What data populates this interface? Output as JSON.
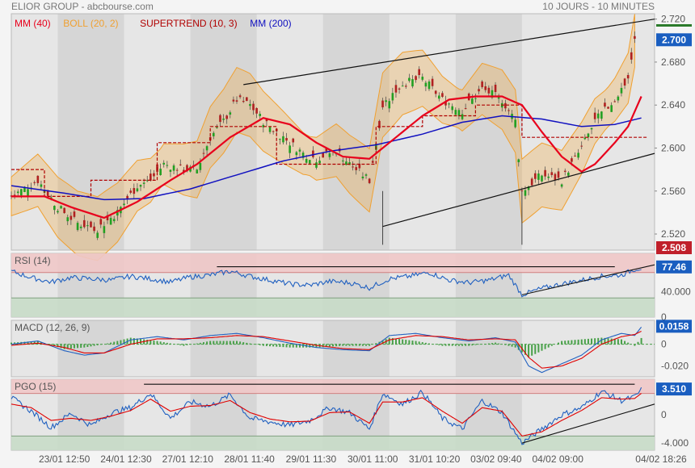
{
  "header": {
    "title": "ELIOR GROUP - abcbourse.com",
    "period": "10 JOURS - 10 MINUTES"
  },
  "colors": {
    "mm40": "#e8001c",
    "boll": "#f0a030",
    "supertrend": "#b00000",
    "mm200": "#1010c0",
    "candle_up": "#22a022",
    "candle_down": "#b02020",
    "rsi": "#2060c0",
    "signal": "#e00000",
    "panel_bg": "#e6e6e6",
    "stripe": "#d6d6d6",
    "overbought": "#f0c8c8",
    "oversold": "#c8dcc8",
    "badge": "#1a5ec0",
    "badge_red": "#c0202a",
    "badge_green": "#2a7a2a"
  },
  "x_dates": [
    "23/01 12:50",
    "24/01 12:30",
    "27/01 12:10",
    "28/01 11:40",
    "29/01 11:30",
    "30/01 11:00",
    "31/01 10:20",
    "03/02 09:40",
    "04/02 09:00",
    "04/02 18:26"
  ],
  "chart_data": [
    {
      "type": "candlestick",
      "legend": [
        {
          "label": "MM (40)",
          "color_key": "mm40"
        },
        {
          "label": "BOLL (20, 2)",
          "color_key": "boll"
        },
        {
          "label": "SUPERTREND (10, 3)",
          "color_key": "supertrend"
        },
        {
          "label": "MM (200)",
          "color_key": "mm200"
        }
      ],
      "y_ticks": [
        "2.720",
        "2.680",
        "2.640",
        "2.600",
        "2.560",
        "2.520"
      ],
      "ylim": [
        2.505,
        2.725
      ],
      "last_price": "2.700",
      "low_marker": "2.508",
      "close_path": [
        [
          0,
          2.555
        ],
        [
          4,
          2.57
        ],
        [
          7,
          2.545
        ],
        [
          10,
          2.53
        ],
        [
          13,
          2.525
        ],
        [
          16,
          2.54
        ],
        [
          19,
          2.565
        ],
        [
          21,
          2.57
        ],
        [
          23,
          2.585
        ],
        [
          26,
          2.58
        ],
        [
          28,
          2.58
        ],
        [
          30,
          2.61
        ],
        [
          32,
          2.625
        ],
        [
          34,
          2.645
        ],
        [
          36,
          2.64
        ],
        [
          38,
          2.625
        ],
        [
          40,
          2.615
        ],
        [
          42,
          2.605
        ],
        [
          44,
          2.595
        ],
        [
          46,
          2.59
        ],
        [
          49,
          2.598
        ],
        [
          51,
          2.585
        ],
        [
          54,
          2.57
        ],
        [
          56,
          2.64
        ],
        [
          59,
          2.66
        ],
        [
          62,
          2.665
        ],
        [
          65,
          2.645
        ],
        [
          68,
          2.635
        ],
        [
          71,
          2.655
        ],
        [
          74,
          2.645
        ],
        [
          76,
          2.625
        ],
        [
          77,
          2.56
        ],
        [
          80,
          2.575
        ],
        [
          83,
          2.57
        ],
        [
          86,
          2.6
        ],
        [
          88,
          2.625
        ],
        [
          91,
          2.645
        ],
        [
          93,
          2.665
        ],
        [
          94,
          2.7
        ]
      ],
      "mm40": [
        [
          0,
          2.555
        ],
        [
          5,
          2.555
        ],
        [
          9,
          2.545
        ],
        [
          14,
          2.535
        ],
        [
          19,
          2.55
        ],
        [
          24,
          2.57
        ],
        [
          28,
          2.585
        ],
        [
          33,
          2.61
        ],
        [
          38,
          2.628
        ],
        [
          42,
          2.622
        ],
        [
          46,
          2.605
        ],
        [
          50,
          2.592
        ],
        [
          54,
          2.59
        ],
        [
          58,
          2.61
        ],
        [
          62,
          2.63
        ],
        [
          66,
          2.645
        ],
        [
          70,
          2.648
        ],
        [
          74,
          2.648
        ],
        [
          77,
          2.64
        ],
        [
          80,
          2.615
        ],
        [
          83,
          2.592
        ],
        [
          86,
          2.578
        ],
        [
          88,
          2.585
        ],
        [
          91,
          2.605
        ],
        [
          93,
          2.62
        ],
        [
          95,
          2.648
        ]
      ],
      "mm200": [
        [
          0,
          2.565
        ],
        [
          8,
          2.558
        ],
        [
          14,
          2.552
        ],
        [
          20,
          2.553
        ],
        [
          27,
          2.562
        ],
        [
          34,
          2.575
        ],
        [
          41,
          2.588
        ],
        [
          48,
          2.597
        ],
        [
          55,
          2.603
        ],
        [
          62,
          2.613
        ],
        [
          68,
          2.624
        ],
        [
          74,
          2.63
        ],
        [
          80,
          2.627
        ],
        [
          86,
          2.62
        ],
        [
          91,
          2.622
        ],
        [
          95,
          2.628
        ]
      ],
      "supertrend": [
        [
          0,
          2.58
        ],
        [
          5,
          2.58
        ],
        [
          5,
          2.555
        ],
        [
          12,
          2.555
        ],
        [
          12,
          2.57
        ],
        [
          22,
          2.57
        ],
        [
          22,
          2.605
        ],
        [
          30,
          2.605
        ],
        [
          30,
          2.62
        ],
        [
          40,
          2.62
        ],
        [
          40,
          2.585
        ],
        [
          55,
          2.585
        ],
        [
          55,
          2.62
        ],
        [
          62,
          2.62
        ],
        [
          62,
          2.63
        ],
        [
          70,
          2.63
        ],
        [
          70,
          2.64
        ],
        [
          77,
          2.64
        ],
        [
          77,
          2.61
        ],
        [
          96,
          2.61
        ]
      ],
      "channel_lines": [
        [
          [
            35,
            2.659
          ],
          [
            97,
            2.72
          ]
        ],
        [
          [
            56,
            2.527
          ],
          [
            97,
            2.595
          ]
        ]
      ],
      "wick_spikes": [
        [
          56,
          2.51,
          2.56
        ],
        [
          77,
          2.51,
          2.56
        ]
      ]
    },
    {
      "type": "line",
      "name": "RSI (14)",
      "last_value": "77.46",
      "y_ticks": [
        "40.000",
        "0"
      ],
      "ylim": [
        0,
        100
      ],
      "levels": [
        70,
        30
      ],
      "series": [
        {
          "name": "RSI (14)",
          "values": [
            [
              0,
              72
            ],
            [
              3,
              62
            ],
            [
              6,
              55
            ],
            [
              9,
              62
            ],
            [
              12,
              60
            ],
            [
              15,
              58
            ],
            [
              18,
              64
            ],
            [
              21,
              60
            ],
            [
              24,
              55
            ],
            [
              27,
              63
            ],
            [
              30,
              66
            ],
            [
              33,
              72
            ],
            [
              36,
              64
            ],
            [
              39,
              58
            ],
            [
              42,
              52
            ],
            [
              45,
              50
            ],
            [
              48,
              56
            ],
            [
              51,
              54
            ],
            [
              54,
              46
            ],
            [
              57,
              60
            ],
            [
              60,
              64
            ],
            [
              63,
              70
            ],
            [
              66,
              58
            ],
            [
              69,
              54
            ],
            [
              72,
              58
            ],
            [
              75,
              66
            ],
            [
              77,
              35
            ],
            [
              80,
              45
            ],
            [
              83,
              52
            ],
            [
              86,
              58
            ],
            [
              89,
              64
            ],
            [
              92,
              66
            ],
            [
              94,
              75
            ],
            [
              95,
              77
            ]
          ]
        }
      ],
      "trend_lines": [
        [
          [
            31,
            79
          ],
          [
            91,
            79
          ]
        ],
        [
          [
            77,
            35
          ],
          [
            97,
            82
          ]
        ]
      ]
    },
    {
      "type": "line",
      "name": "MACD (12, 26, 9)",
      "last_value": "0.0158",
      "y_ticks": [
        "0",
        "-0.020"
      ],
      "ylim": [
        -0.03,
        0.022
      ],
      "series": [
        {
          "name": "MACD",
          "values": [
            [
              0,
              0
            ],
            [
              4,
              0.003
            ],
            [
              8,
              -0.006
            ],
            [
              11,
              -0.01
            ],
            [
              14,
              -0.008
            ],
            [
              18,
              0.004
            ],
            [
              22,
              0.007
            ],
            [
              26,
              0.004
            ],
            [
              30,
              0.008
            ],
            [
              34,
              0.01
            ],
            [
              38,
              0.006
            ],
            [
              42,
              0.001
            ],
            [
              46,
              -0.003
            ],
            [
              50,
              -0.005
            ],
            [
              54,
              -0.006
            ],
            [
              57,
              0.008
            ],
            [
              61,
              0.01
            ],
            [
              65,
              0.006
            ],
            [
              69,
              0.003
            ],
            [
              73,
              0.006
            ],
            [
              76,
              0.002
            ],
            [
              78,
              -0.02
            ],
            [
              80,
              -0.026
            ],
            [
              83,
              -0.018
            ],
            [
              86,
              -0.01
            ],
            [
              89,
              0.004
            ],
            [
              92,
              0.01
            ],
            [
              94,
              0.008
            ],
            [
              95,
              0.0158
            ]
          ]
        },
        {
          "name": "Signal",
          "values": [
            [
              0,
              -0.001
            ],
            [
              4,
              0.001
            ],
            [
              8,
              -0.003
            ],
            [
              11,
              -0.008
            ],
            [
              14,
              -0.008
            ],
            [
              18,
              0
            ],
            [
              22,
              0.005
            ],
            [
              26,
              0.005
            ],
            [
              30,
              0.006
            ],
            [
              34,
              0.008
            ],
            [
              38,
              0.007
            ],
            [
              42,
              0.003
            ],
            [
              46,
              -0.001
            ],
            [
              50,
              -0.004
            ],
            [
              54,
              -0.005
            ],
            [
              57,
              0.004
            ],
            [
              61,
              0.008
            ],
            [
              65,
              0.007
            ],
            [
              69,
              0.004
            ],
            [
              73,
              0.005
            ],
            [
              76,
              0.004
            ],
            [
              78,
              -0.012
            ],
            [
              80,
              -0.022
            ],
            [
              83,
              -0.02
            ],
            [
              86,
              -0.013
            ],
            [
              89,
              0
            ],
            [
              92,
              0.007
            ],
            [
              94,
              0.009
            ],
            [
              95,
              0.012
            ]
          ]
        }
      ]
    },
    {
      "type": "line",
      "name": "PGO (15)",
      "last_value": "3.510",
      "y_ticks": [
        "0",
        "-4.000"
      ],
      "ylim": [
        -5,
        5
      ],
      "levels": [
        3,
        -3
      ],
      "series": [
        {
          "name": "PGO",
          "values": [
            [
              0,
              2.4
            ],
            [
              3,
              0.5
            ],
            [
              6,
              -1.8
            ],
            [
              9,
              0.2
            ],
            [
              12,
              -1.5
            ],
            [
              15,
              0.2
            ],
            [
              18,
              1
            ],
            [
              21,
              3
            ],
            [
              24,
              -0.5
            ],
            [
              27,
              1.8
            ],
            [
              30,
              1.2
            ],
            [
              33,
              2.8
            ],
            [
              36,
              -0.5
            ],
            [
              39,
              -1
            ],
            [
              42,
              -1.5
            ],
            [
              45,
              -0.8
            ],
            [
              48,
              1
            ],
            [
              51,
              0.3
            ],
            [
              54,
              -2
            ],
            [
              56,
              3
            ],
            [
              59,
              1.5
            ],
            [
              62,
              3.2
            ],
            [
              65,
              -0.5
            ],
            [
              68,
              -2
            ],
            [
              71,
              2
            ],
            [
              74,
              0.3
            ],
            [
              77,
              -4
            ],
            [
              80,
              -2
            ],
            [
              83,
              0
            ],
            [
              86,
              1
            ],
            [
              89,
              3.3
            ],
            [
              92,
              2
            ],
            [
              94,
              2.5
            ],
            [
              95,
              3.5
            ]
          ]
        },
        {
          "name": "Signal",
          "values": [
            [
              0,
              1.5
            ],
            [
              3,
              1
            ],
            [
              6,
              -0.8
            ],
            [
              9,
              -0.5
            ],
            [
              12,
              -0.8
            ],
            [
              15,
              -0.2
            ],
            [
              18,
              0.6
            ],
            [
              21,
              2.2
            ],
            [
              24,
              0.5
            ],
            [
              27,
              1.2
            ],
            [
              30,
              1.3
            ],
            [
              33,
              2
            ],
            [
              36,
              0.3
            ],
            [
              39,
              -0.6
            ],
            [
              42,
              -1
            ],
            [
              45,
              -0.9
            ],
            [
              48,
              0.3
            ],
            [
              51,
              0.4
            ],
            [
              54,
              -1.2
            ],
            [
              56,
              1.8
            ],
            [
              59,
              1.8
            ],
            [
              62,
              2.4
            ],
            [
              65,
              0.5
            ],
            [
              68,
              -1.2
            ],
            [
              71,
              1
            ],
            [
              74,
              0.5
            ],
            [
              77,
              -3
            ],
            [
              80,
              -2.4
            ],
            [
              83,
              -0.8
            ],
            [
              86,
              0.6
            ],
            [
              89,
              2.4
            ],
            [
              92,
              2.2
            ],
            [
              94,
              2.3
            ],
            [
              95,
              3
            ]
          ]
        }
      ],
      "trend_lines": [
        [
          [
            20,
            4.3
          ],
          [
            94,
            4.3
          ]
        ],
        [
          [
            77,
            -4
          ],
          [
            97,
            1.5
          ]
        ]
      ]
    }
  ]
}
